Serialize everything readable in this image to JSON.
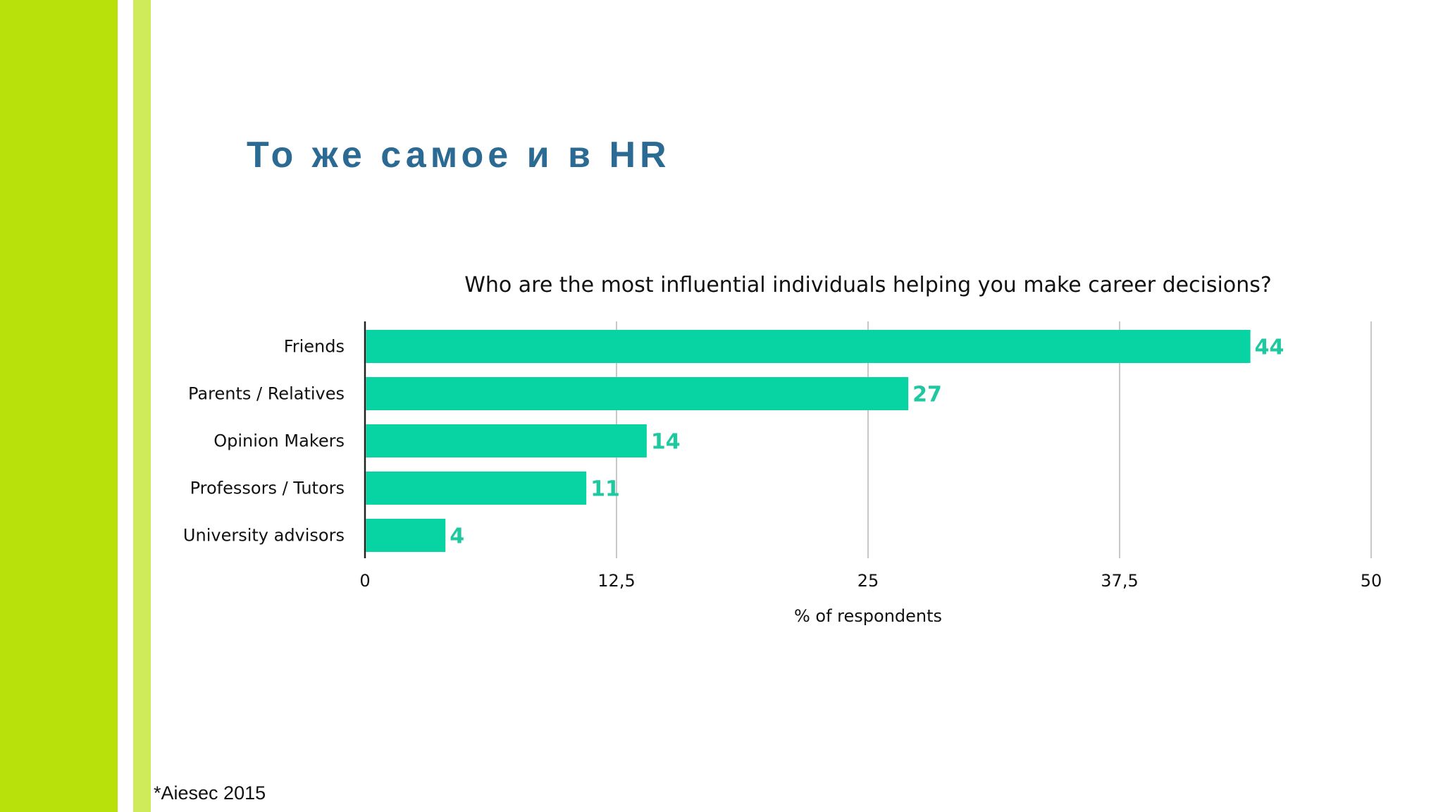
{
  "slide": {
    "title": "То же самое и в HR",
    "source": "*Aiesec 2015"
  },
  "colors": {
    "stripe_main": "#b8e10b",
    "stripe_thin": "#cfeb5a",
    "title": "#2b6a93",
    "bar": "#07d3a3",
    "value_label": "#1ec9a0",
    "grid": "#c8c8c8"
  },
  "chart_data": {
    "type": "bar",
    "orientation": "horizontal",
    "title": "Who are the most influential individuals helping you make career decisions?",
    "categories": [
      "Friends",
      "Parents / Relatives",
      "Opinion Makers",
      "Professors / Tutors",
      "University advisors"
    ],
    "values": [
      44,
      27,
      14,
      11,
      4
    ],
    "xlabel": "% of respondents",
    "ylabel": "",
    "xlim": [
      0,
      50
    ],
    "xticks": [
      0,
      12.5,
      25,
      37.5,
      50
    ],
    "xtick_labels": [
      "0",
      "12,5",
      "25",
      "37,5",
      "50"
    ],
    "grid": true
  }
}
